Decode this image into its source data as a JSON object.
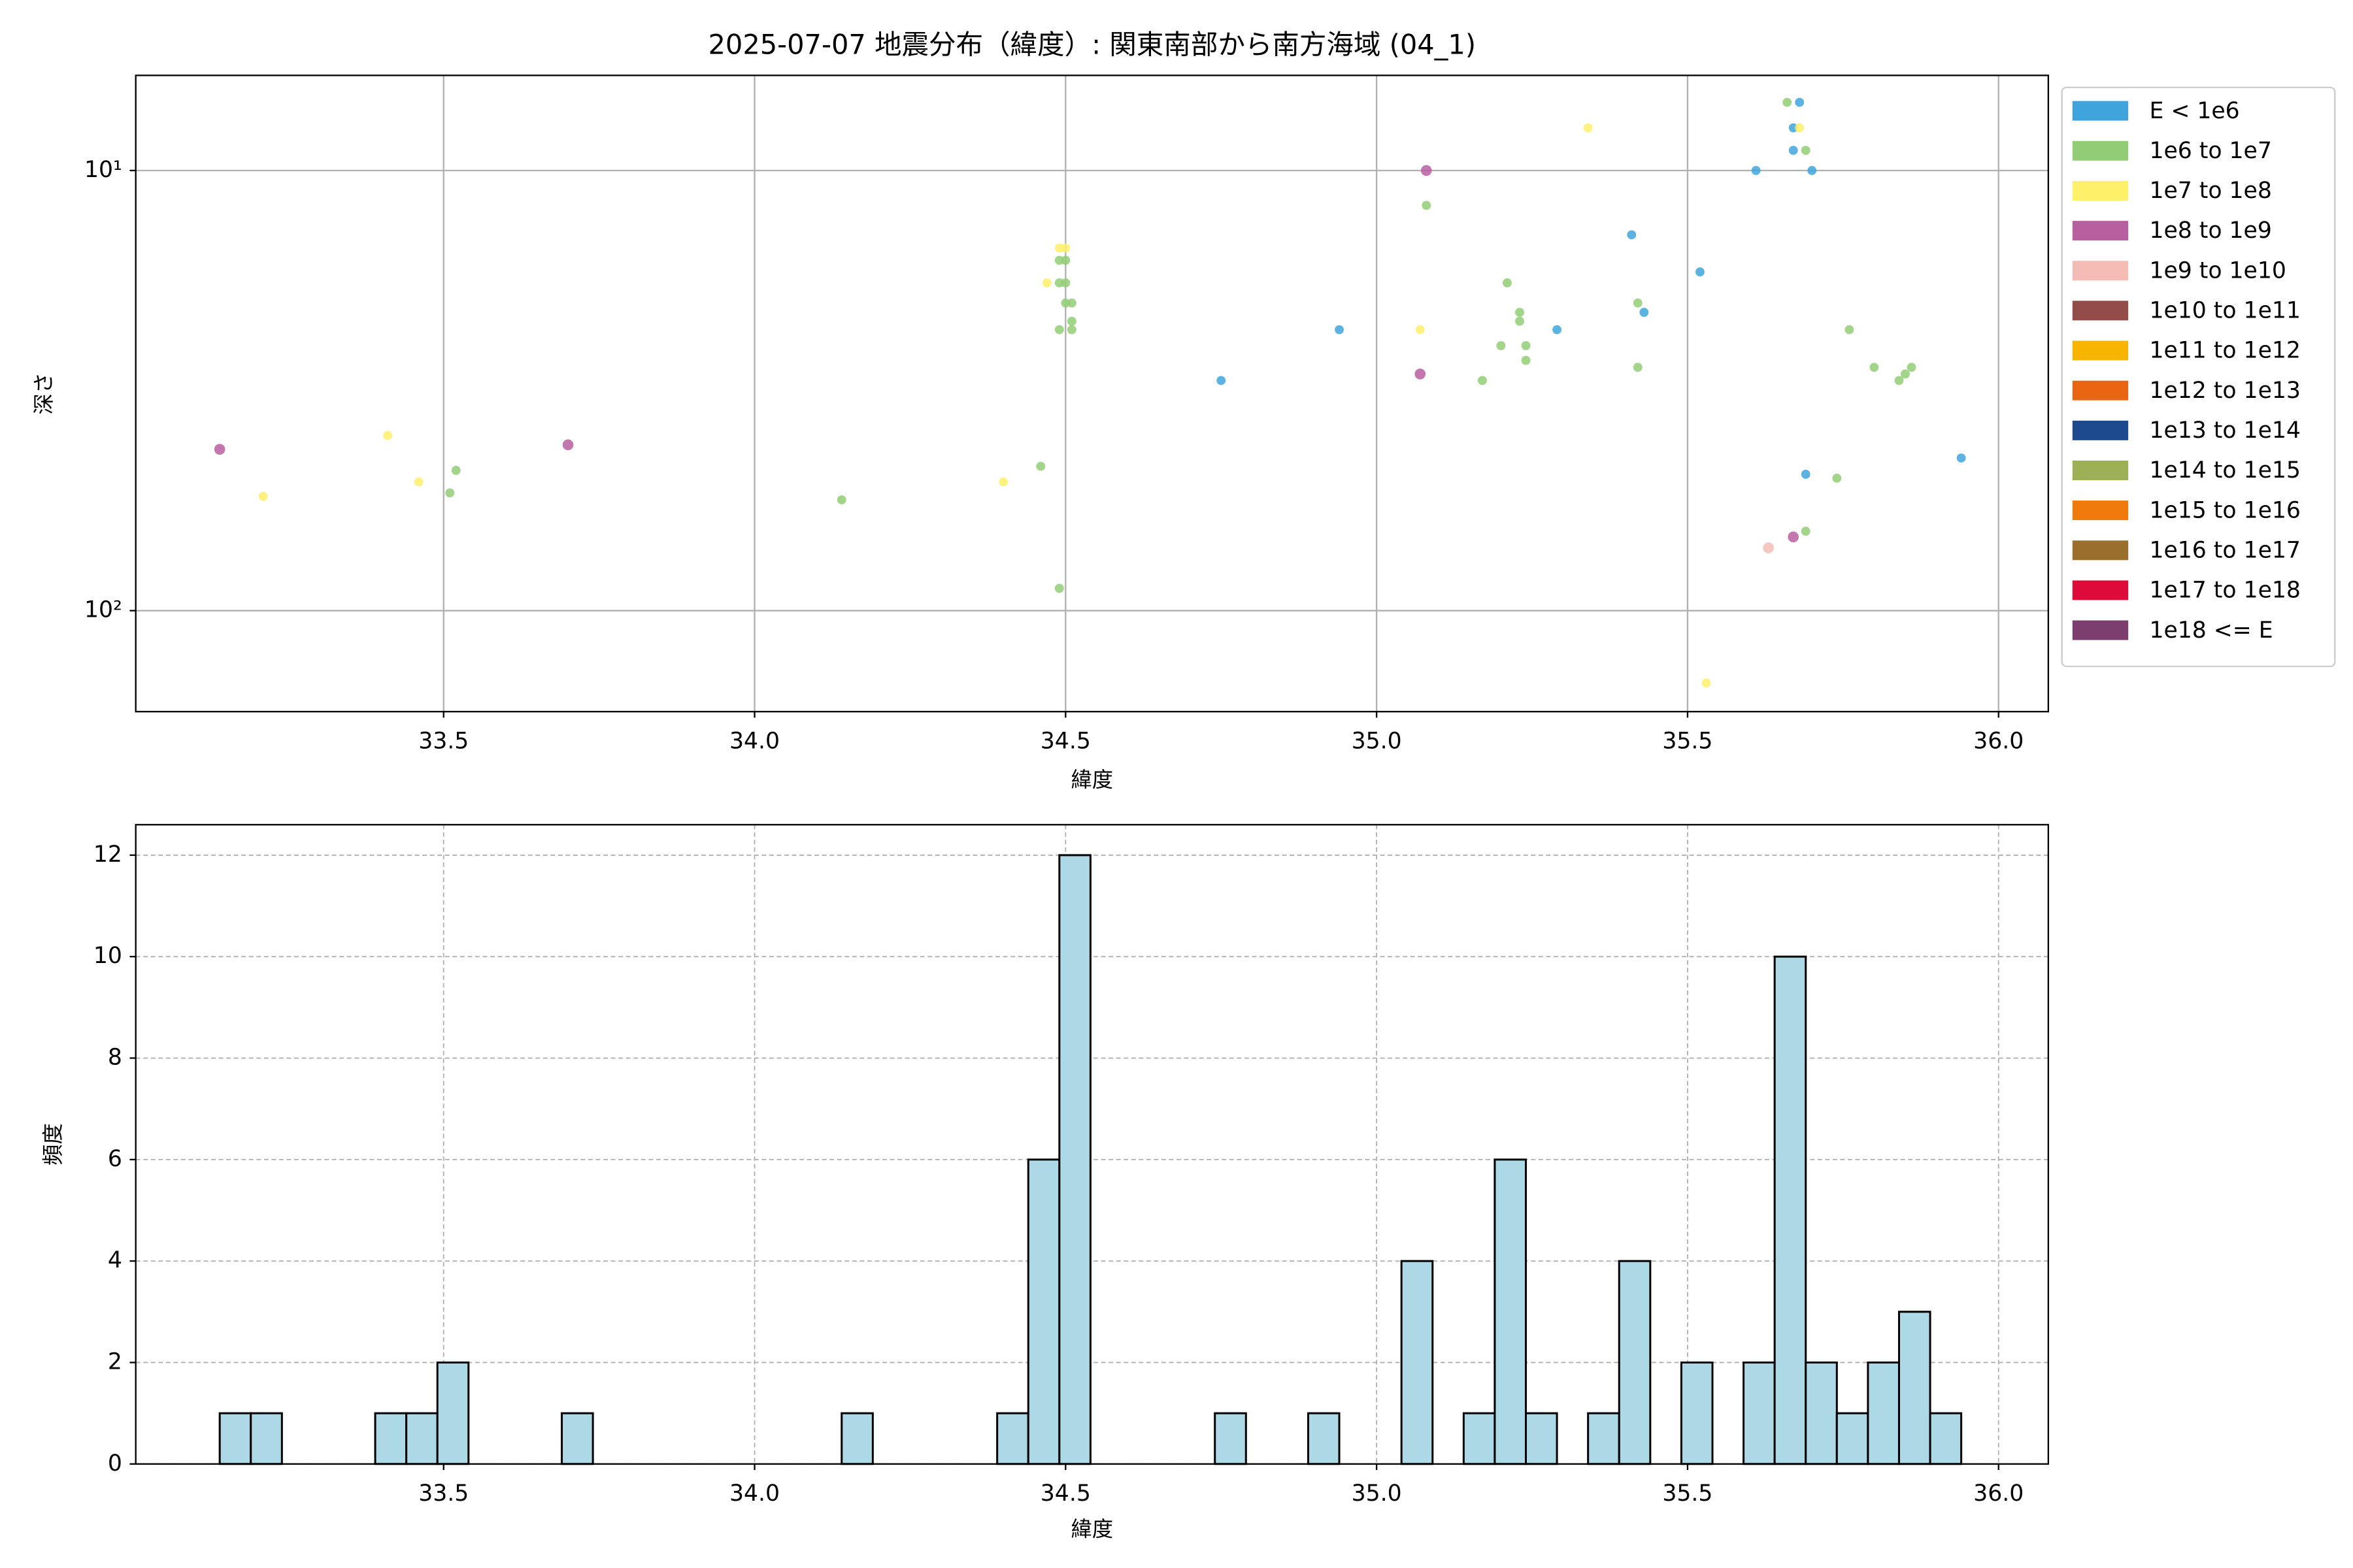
{
  "chart_data": [
    {
      "type": "scatter",
      "title": "2025-07-07 地震分布（緯度）: 関東南部から南方海域 (04_1)",
      "xlabel": "緯度",
      "ylabel": "深さ",
      "xlim": [
        33.005,
        36.08
      ],
      "ylim": [
        6.08,
        169.6
      ],
      "yscale": "log",
      "yinvert": true,
      "xticks": [
        33.5,
        {
          "value": 34,
          "label": "34.0"
        },
        34.5,
        {
          "value": 35,
          "label": "35.0"
        },
        35.5,
        {
          "value": 36,
          "label": "36.0"
        }
      ],
      "yticks": [
        {
          "value": 10,
          "label": "10¹"
        },
        {
          "value": 100,
          "label": "10²"
        }
      ],
      "grid": true,
      "legend": "outside right",
      "series": [
        {
          "name": "E < 1e6",
          "color": "#3fa4dc",
          "x": [
            34.75,
            34.94,
            35.29,
            35.41,
            35.43,
            35.52,
            35.61,
            35.68,
            35.67,
            35.67,
            35.7,
            35.69,
            35.94
          ],
          "values": [
            30,
            23,
            23,
            14,
            21,
            17,
            10,
            7,
            8,
            9,
            10,
            49,
            45
          ]
        },
        {
          "name": "1e6 to 1e7",
          "color": "#92cc74",
          "x": [
            35.66,
            35.69,
            35.08,
            35.21,
            35.23,
            35.23,
            35.2,
            35.24,
            35.24,
            35.17,
            35.42,
            35.42,
            35.76,
            35.8,
            35.84,
            35.85,
            35.86,
            35.74,
            35.69,
            34.49,
            34.5,
            34.49,
            34.5,
            34.5,
            34.51,
            34.51,
            34.51,
            34.49,
            34.46,
            34.49,
            34.14,
            33.52,
            33.51
          ],
          "values": [
            7,
            9,
            12,
            18,
            21,
            22,
            25,
            25,
            27,
            30,
            20,
            28,
            23,
            28,
            30,
            29,
            28,
            50,
            66,
            16,
            16,
            18,
            18,
            20,
            20,
            22,
            23,
            23,
            47,
            89,
            56,
            48,
            54
          ]
        },
        {
          "name": "1e7 to 1e8",
          "color": "#fff06a",
          "x": [
            35.34,
            35.68,
            34.5,
            34.49,
            34.47,
            35.07,
            34.4,
            33.46,
            33.41,
            33.21,
            35.53
          ],
          "values": [
            8,
            8,
            15,
            15,
            18,
            23,
            51,
            51,
            40,
            55,
            146
          ]
        },
        {
          "name": "1e8 to 1e9",
          "color": "#b85fa0",
          "x": [
            35.08,
            35.07,
            33.14,
            33.7,
            35.67
          ],
          "values": [
            10,
            29,
            43,
            42,
            68
          ]
        },
        {
          "name": "1e9 to 1e10",
          "color": "#f5bcb5",
          "x": [
            35.63
          ],
          "values": [
            72
          ]
        },
        {
          "name": "1e10 to 1e11",
          "color": "#934c48",
          "x": [],
          "values": []
        },
        {
          "name": "1e11 to 1e12",
          "color": "#f7b500",
          "x": [],
          "values": []
        },
        {
          "name": "1e12 to 1e13",
          "color": "#ea6512",
          "x": [],
          "values": []
        },
        {
          "name": "1e13 to 1e14",
          "color": "#1d4a8e",
          "x": [],
          "values": []
        },
        {
          "name": "1e14 to 1e15",
          "color": "#9db056",
          "x": [],
          "values": []
        },
        {
          "name": "1e15 to 1e16",
          "color": "#f07a0c",
          "x": [],
          "values": []
        },
        {
          "name": "1e16 to 1e17",
          "color": "#9a6f2b",
          "x": [],
          "values": []
        },
        {
          "name": "1e17 to 1e18",
          "color": "#de0a3a",
          "x": [],
          "values": []
        },
        {
          "name": "1e18 <= E",
          "color": "#7b3e6e",
          "x": [],
          "values": []
        }
      ]
    },
    {
      "type": "histogram",
      "xlabel": "緯度",
      "ylabel": "頻度",
      "xlim": [
        33.005,
        36.08
      ],
      "ylim": [
        0,
        12.6
      ],
      "xticks": [
        33.5,
        {
          "value": 34,
          "label": "34.0"
        },
        34.5,
        {
          "value": 35,
          "label": "35.0"
        },
        35.5,
        {
          "value": 36,
          "label": "36.0"
        }
      ],
      "yticks": [
        0,
        2,
        4,
        6,
        8,
        10,
        12
      ],
      "grid": "dashed",
      "color": "#add8e6",
      "edgecolor": "#000000",
      "bins": [
        33.14,
        33.19,
        33.24,
        33.29,
        33.34,
        33.39,
        33.44,
        33.49,
        33.54,
        33.59,
        33.64,
        33.69,
        33.74,
        33.79,
        33.84,
        33.89,
        33.94,
        33.99,
        34.04,
        34.09,
        34.14,
        34.19,
        34.24,
        34.29,
        34.34,
        34.39,
        34.44,
        34.49,
        34.54,
        34.59,
        34.64,
        34.69,
        34.74,
        34.79,
        34.84,
        34.89,
        34.94,
        34.99,
        35.04,
        35.09,
        35.14,
        35.19,
        35.24,
        35.29,
        35.34,
        35.39,
        35.44,
        35.49,
        35.54,
        35.59,
        35.64,
        35.69,
        35.74,
        35.79,
        35.84,
        35.89,
        35.94
      ],
      "values": [
        1,
        1,
        0,
        0,
        0,
        1,
        1,
        2,
        0,
        0,
        0,
        1,
        0,
        0,
        0,
        0,
        0,
        0,
        0,
        0,
        1,
        0,
        0,
        0,
        0,
        1,
        6,
        12,
        0,
        0,
        0,
        0,
        1,
        0,
        0,
        1,
        0,
        0,
        4,
        0,
        1,
        6,
        1,
        0,
        1,
        4,
        0,
        2,
        0,
        2,
        10,
        2,
        1,
        2,
        3,
        1
      ]
    }
  ]
}
